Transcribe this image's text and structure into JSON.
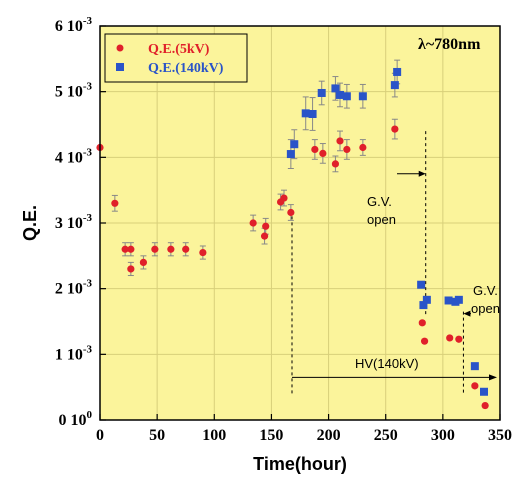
{
  "chart_data": {
    "type": "scatter",
    "xlabel": "Time(hour)",
    "ylabel": "Q.E.",
    "xlim": [
      0,
      350
    ],
    "ylim": [
      0,
      0.006
    ],
    "x_ticks": [
      0,
      50,
      100,
      150,
      200,
      250,
      300,
      350
    ],
    "y_ticks": [
      {
        "value": 0,
        "mantissa": "0",
        "base": "10",
        "exp": "0"
      },
      {
        "value": 0.001,
        "mantissa": "1",
        "base": "10",
        "exp": "-3"
      },
      {
        "value": 0.002,
        "mantissa": "2",
        "base": "10",
        "exp": "-3"
      },
      {
        "value": 0.003,
        "mantissa": "3",
        "base": "10",
        "exp": "-3"
      },
      {
        "value": 0.004,
        "mantissa": "4",
        "base": "10",
        "exp": "-3"
      },
      {
        "value": 0.005,
        "mantissa": "5",
        "base": "10",
        "exp": "-3"
      },
      {
        "value": 0.006,
        "mantissa": "6",
        "base": "10",
        "exp": "-3"
      }
    ],
    "grid": true,
    "legend_position": "top-left",
    "background": "#fbf49b",
    "series": [
      {
        "name": "Q.E.(5kV)",
        "color": "#e0202a",
        "marker": "circle",
        "points": [
          {
            "x": 0,
            "y": 0.00415,
            "err": 0
          },
          {
            "x": 13,
            "y": 0.0033,
            "err": 0.00012
          },
          {
            "x": 22,
            "y": 0.0026,
            "err": 0.0001
          },
          {
            "x": 27,
            "y": 0.0026,
            "err": 0.0001
          },
          {
            "x": 27,
            "y": 0.0023,
            "err": 0.0001
          },
          {
            "x": 38,
            "y": 0.0024,
            "err": 0.0001
          },
          {
            "x": 48,
            "y": 0.0026,
            "err": 0.0001
          },
          {
            "x": 62,
            "y": 0.0026,
            "err": 0.0001
          },
          {
            "x": 75,
            "y": 0.0026,
            "err": 0.0001
          },
          {
            "x": 90,
            "y": 0.00255,
            "err": 0.0001
          },
          {
            "x": 134,
            "y": 0.003,
            "err": 0.00012
          },
          {
            "x": 144,
            "y": 0.0028,
            "err": 0.00012
          },
          {
            "x": 145,
            "y": 0.00295,
            "err": 0.00012
          },
          {
            "x": 158,
            "y": 0.00332,
            "err": 0.00012
          },
          {
            "x": 161,
            "y": 0.00338,
            "err": 0.00012
          },
          {
            "x": 167,
            "y": 0.00316,
            "err": 0.00012
          },
          {
            "x": 188,
            "y": 0.00412,
            "err": 0.00015
          },
          {
            "x": 195,
            "y": 0.00406,
            "err": 0.00015
          },
          {
            "x": 206,
            "y": 0.0039,
            "err": 0.00012
          },
          {
            "x": 210,
            "y": 0.00425,
            "err": 0.00015
          },
          {
            "x": 216,
            "y": 0.00412,
            "err": 0.00015
          },
          {
            "x": 230,
            "y": 0.00415,
            "err": 0.00012
          },
          {
            "x": 258,
            "y": 0.00443,
            "err": 0.00015
          },
          {
            "x": 282,
            "y": 0.00148,
            "err": 0
          },
          {
            "x": 284,
            "y": 0.0012,
            "err": 0
          },
          {
            "x": 306,
            "y": 0.00125,
            "err": 0
          },
          {
            "x": 314,
            "y": 0.00123,
            "err": 0
          },
          {
            "x": 328,
            "y": 0.00052,
            "err": 0
          },
          {
            "x": 337,
            "y": 0.00022,
            "err": 0
          }
        ]
      },
      {
        "name": "Q.E.(140kV)",
        "color": "#2a54c8",
        "marker": "square",
        "points": [
          {
            "x": 167,
            "y": 0.00405,
            "err": 0.00022
          },
          {
            "x": 170,
            "y": 0.0042,
            "err": 0.00022
          },
          {
            "x": 180,
            "y": 0.00467,
            "err": 0.00025
          },
          {
            "x": 186,
            "y": 0.00466,
            "err": 0.00025
          },
          {
            "x": 194,
            "y": 0.00498,
            "err": 0.00018
          },
          {
            "x": 206,
            "y": 0.00505,
            "err": 0.00018
          },
          {
            "x": 210,
            "y": 0.00495,
            "err": 0.00018
          },
          {
            "x": 216,
            "y": 0.00493,
            "err": 0.00018
          },
          {
            "x": 230,
            "y": 0.00493,
            "err": 0.00018
          },
          {
            "x": 258,
            "y": 0.0051,
            "err": 0.00018
          },
          {
            "x": 260,
            "y": 0.0053,
            "err": 0.00018
          },
          {
            "x": 281,
            "y": 0.00206,
            "err": 0
          },
          {
            "x": 283,
            "y": 0.00175,
            "err": 0
          },
          {
            "x": 286,
            "y": 0.00183,
            "err": 0
          },
          {
            "x": 305,
            "y": 0.00182,
            "err": 0
          },
          {
            "x": 311,
            "y": 0.0018,
            "err": 0
          },
          {
            "x": 314,
            "y": 0.00183,
            "err": 0
          },
          {
            "x": 328,
            "y": 0.00082,
            "err": 0
          },
          {
            "x": 336,
            "y": 0.00043,
            "err": 0
          }
        ]
      }
    ],
    "annotations": {
      "lambda_label": "λ~780nm",
      "gv_open_1": {
        "line1": "G.V.",
        "line2": "open",
        "x": 285
      },
      "gv_open_2": {
        "line1": "G.V.",
        "line2": "open",
        "x": 318
      },
      "hv_label": "HV(140kV)",
      "hv_start_x": 168,
      "hv_level": 0.00065,
      "gv_arrow_level": 0.00375,
      "gv_line_top": 0.0044,
      "gv2_line_top": 0.00165
    }
  }
}
